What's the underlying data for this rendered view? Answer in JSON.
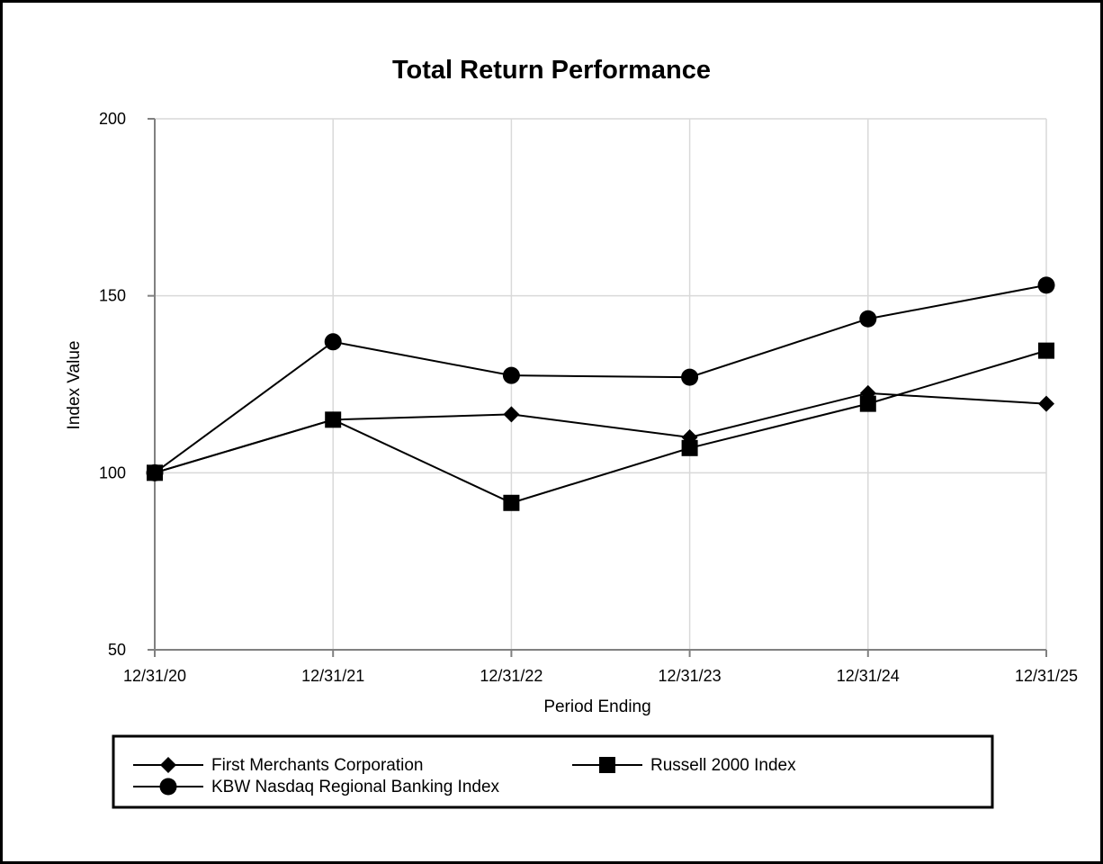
{
  "chart_data": {
    "type": "line",
    "title": "Total Return Performance",
    "xlabel": "Period Ending",
    "ylabel": "Index Value",
    "categories": [
      "12/31/20",
      "12/31/21",
      "12/31/22",
      "12/31/23",
      "12/31/24",
      "12/31/25"
    ],
    "yticks": [
      50,
      100,
      150,
      200
    ],
    "ylim": [
      50,
      200
    ],
    "grid": true,
    "legend_position": "bottom",
    "series": [
      {
        "name": "First Merchants Corporation",
        "marker": "diamond",
        "values": [
          100,
          115,
          116.5,
          110,
          122.5,
          119.5
        ]
      },
      {
        "name": "Russell 2000 Index",
        "marker": "square",
        "values": [
          100,
          115,
          91.5,
          107,
          119.5,
          134.5
        ]
      },
      {
        "name": "KBW Nasdaq Regional Banking Index",
        "marker": "circle",
        "values": [
          100,
          137,
          127.5,
          127,
          143.5,
          153
        ]
      }
    ]
  }
}
